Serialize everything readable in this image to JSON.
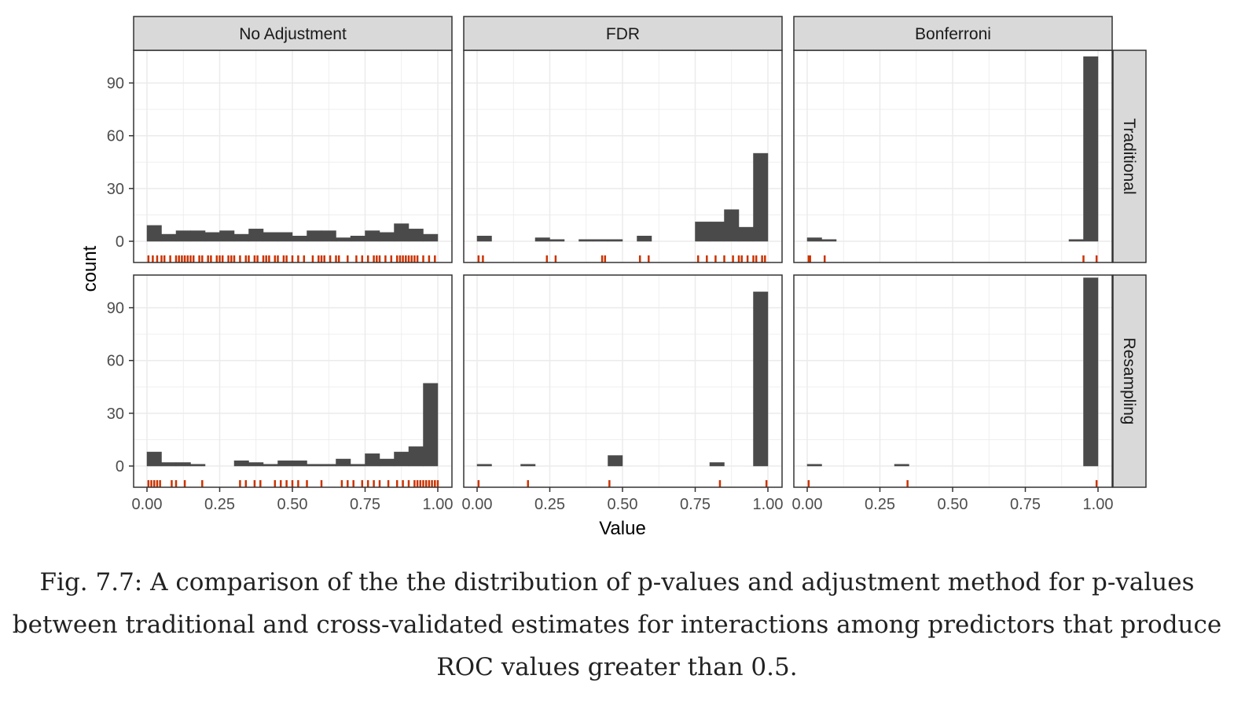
{
  "caption": "Fig. 7.7: A comparison of the the distribution of p-values and adjustment method for p-values between traditional and cross-validated estimates for interactions among predictors that produce ROC values greater than 0.5.",
  "chart_data": {
    "type": "histogram",
    "xlabel": "Value",
    "ylabel": "count",
    "xlim": [
      0,
      1
    ],
    "ylim": [
      0,
      105
    ],
    "x_ticks": [
      "0.00",
      "0.25",
      "0.50",
      "0.75",
      "1.00"
    ],
    "y_ticks": [
      "0",
      "30",
      "60",
      "90"
    ],
    "bin_width": 0.05,
    "columns": [
      "No Adjustment",
      "FDR",
      "Bonferroni"
    ],
    "rows": [
      "Traditional",
      "Resampling"
    ],
    "grid": true,
    "colors": {
      "bar": "#4a4a4a",
      "rug": "#cc3300",
      "strip": "#d9d9d9",
      "panel_border": "#333333",
      "grid": "#ebebeb"
    },
    "panels": [
      {
        "row": "Traditional",
        "column": "No Adjustment",
        "bin_starts": [
          0.0,
          0.05,
          0.1,
          0.15,
          0.2,
          0.25,
          0.3,
          0.35,
          0.4,
          0.45,
          0.5,
          0.55,
          0.6,
          0.65,
          0.7,
          0.75,
          0.8,
          0.85,
          0.9,
          0.95
        ],
        "counts": [
          9,
          4,
          6,
          6,
          5,
          6,
          4,
          7,
          5,
          5,
          3,
          6,
          6,
          2,
          3,
          6,
          5,
          10,
          7,
          4
        ],
        "rug": [
          0.005,
          0.02,
          0.035,
          0.05,
          0.06,
          0.08,
          0.1,
          0.11,
          0.12,
          0.13,
          0.14,
          0.15,
          0.16,
          0.18,
          0.19,
          0.21,
          0.22,
          0.24,
          0.25,
          0.26,
          0.28,
          0.29,
          0.3,
          0.32,
          0.34,
          0.35,
          0.37,
          0.38,
          0.4,
          0.41,
          0.42,
          0.44,
          0.45,
          0.47,
          0.48,
          0.5,
          0.52,
          0.54,
          0.57,
          0.59,
          0.6,
          0.61,
          0.63,
          0.65,
          0.66,
          0.69,
          0.72,
          0.74,
          0.76,
          0.78,
          0.79,
          0.8,
          0.82,
          0.84,
          0.86,
          0.87,
          0.88,
          0.89,
          0.9,
          0.91,
          0.92,
          0.93,
          0.95,
          0.97,
          0.99
        ]
      },
      {
        "row": "Traditional",
        "column": "FDR",
        "bin_starts": [
          0.0,
          0.2,
          0.25,
          0.35,
          0.4,
          0.45,
          0.55,
          0.75,
          0.8,
          0.85,
          0.9,
          0.95
        ],
        "counts": [
          3,
          2,
          1,
          1,
          1,
          1,
          3,
          11,
          11,
          18,
          8,
          50
        ],
        "rug": [
          0.005,
          0.02,
          0.24,
          0.27,
          0.43,
          0.44,
          0.56,
          0.59,
          0.76,
          0.79,
          0.82,
          0.85,
          0.88,
          0.9,
          0.91,
          0.93,
          0.95,
          0.96,
          0.98,
          0.99
        ]
      },
      {
        "row": "Traditional",
        "column": "Bonferroni",
        "bin_starts": [
          0.0,
          0.05,
          0.9,
          0.95
        ],
        "counts": [
          2,
          1,
          1,
          105
        ],
        "rug": [
          0.005,
          0.01,
          0.06,
          0.95,
          0.995
        ]
      },
      {
        "row": "Resampling",
        "column": "No Adjustment",
        "bin_starts": [
          0.0,
          0.05,
          0.1,
          0.15,
          0.3,
          0.35,
          0.4,
          0.45,
          0.5,
          0.55,
          0.6,
          0.65,
          0.7,
          0.75,
          0.8,
          0.85,
          0.9,
          0.95
        ],
        "counts": [
          8,
          2,
          2,
          1,
          3,
          2,
          1,
          3,
          3,
          1,
          1,
          4,
          1,
          7,
          4,
          8,
          11,
          47
        ],
        "rug": [
          0.005,
          0.015,
          0.025,
          0.035,
          0.045,
          0.085,
          0.1,
          0.13,
          0.19,
          0.32,
          0.34,
          0.37,
          0.39,
          0.44,
          0.46,
          0.48,
          0.5,
          0.52,
          0.55,
          0.6,
          0.67,
          0.69,
          0.71,
          0.74,
          0.76,
          0.78,
          0.8,
          0.83,
          0.86,
          0.88,
          0.9,
          0.92,
          0.93,
          0.94,
          0.95,
          0.96,
          0.97,
          0.98,
          0.99,
          1.0
        ]
      },
      {
        "row": "Resampling",
        "column": "FDR",
        "bin_starts": [
          0.0,
          0.15,
          0.45,
          0.8,
          0.95
        ],
        "counts": [
          1,
          1,
          6,
          2,
          99
        ],
        "rug": [
          0.005,
          0.175,
          0.455,
          0.835,
          0.995
        ]
      },
      {
        "row": "Resampling",
        "column": "Bonferroni",
        "bin_starts": [
          0.0,
          0.3,
          0.95
        ],
        "counts": [
          1,
          1,
          107
        ],
        "rug": [
          0.005,
          0.345,
          0.995
        ]
      }
    ]
  }
}
